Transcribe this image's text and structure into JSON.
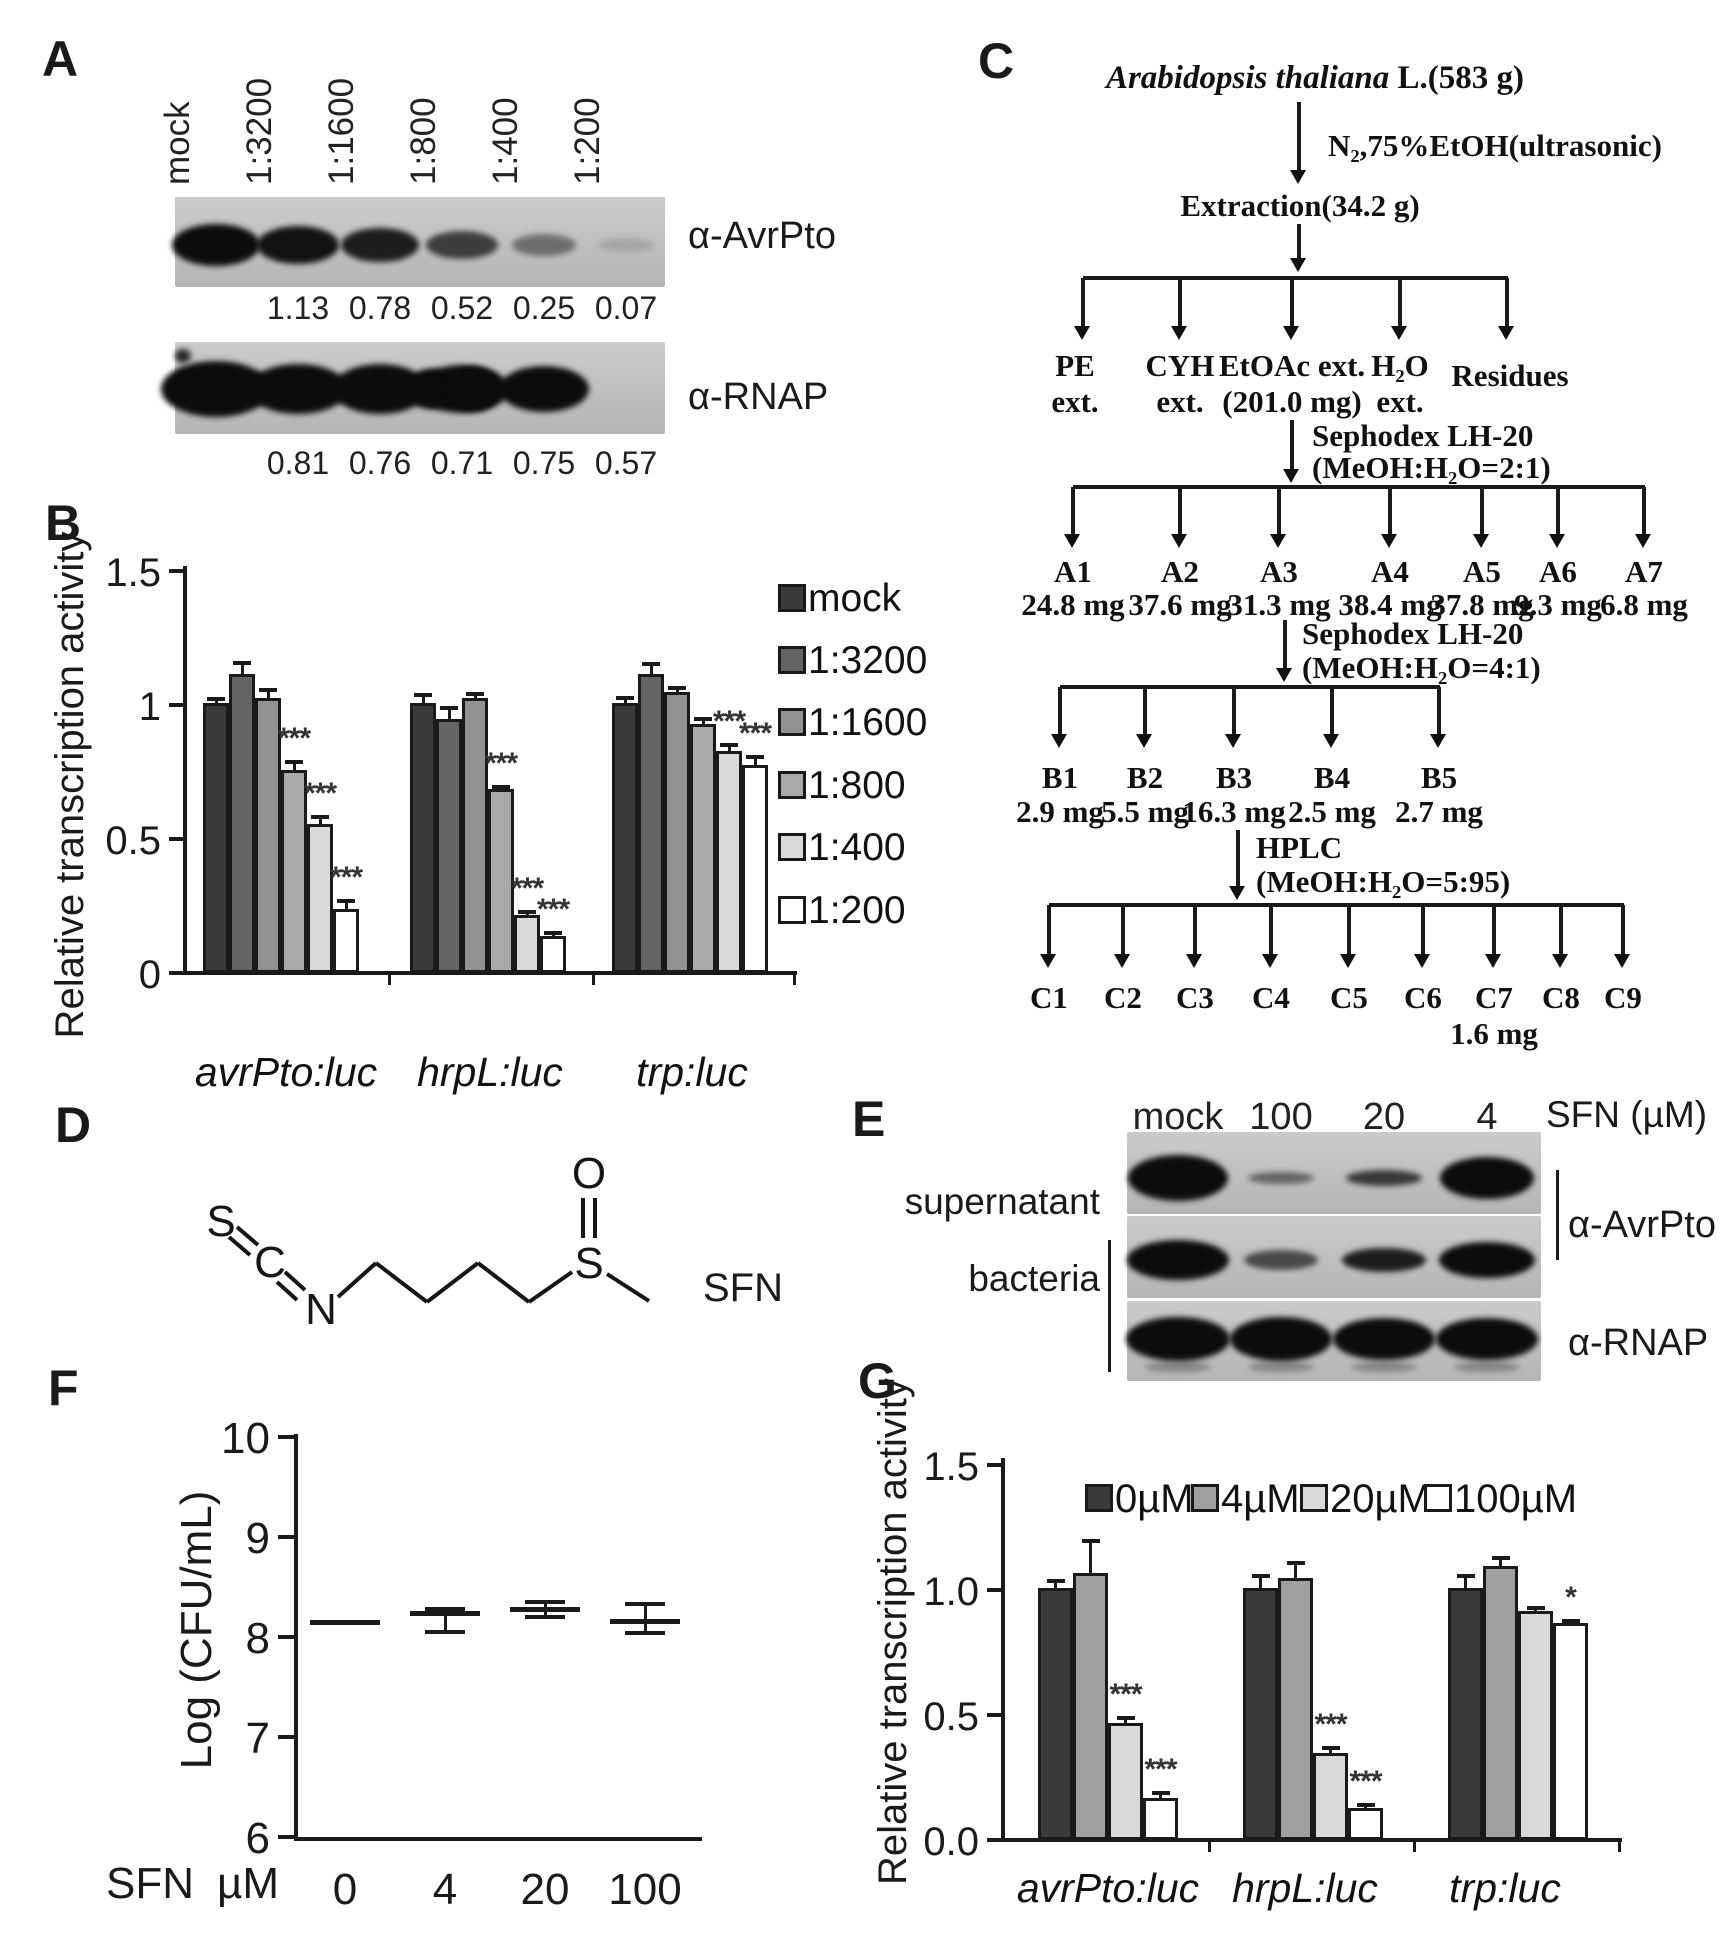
{
  "panel_a": {
    "label": "A",
    "lane_labels": [
      "mock",
      "1:3200",
      "1:1600",
      "1:800",
      "1:400",
      "1:200"
    ],
    "blot1_antibody": "α-AvrPto",
    "blot1_quantification": [
      "1.13",
      "0.78",
      "0.52",
      "0.25",
      "0.07"
    ],
    "blot2_antibody": "α-RNAP",
    "blot2_quantification": [
      "0.81",
      "0.76",
      "0.71",
      "0.75",
      "0.57"
    ]
  },
  "panel_b": {
    "label": "B",
    "ylabel": "Relative transcription activity"
  },
  "panel_c": {
    "label": "C",
    "root_italic": "Arabidopsis thaliana",
    "root_rest": " L.(583 g)",
    "step1_reagent": "N₂,75%EtOH(ultrasonic)",
    "extraction": "Extraction(34.2 g)",
    "fractions": [
      {
        "line1": "PE",
        "line2": "ext."
      },
      {
        "line1": "CYH",
        "line2": "ext."
      },
      {
        "line1": "EtOAc ext.",
        "line2": "(201.0 mg)"
      },
      {
        "line1": "H₂O",
        "line2": "ext."
      },
      {
        "line1": "Residues",
        "line2": ""
      }
    ],
    "step2_line1": "Sephodex LH-20",
    "step2_line2": "(MeOH:H₂O=2:1)",
    "a_fractions": [
      {
        "name": "A1",
        "mass": "24.8 mg"
      },
      {
        "name": "A2",
        "mass": "37.6 mg"
      },
      {
        "name": "A3",
        "mass": "31.3 mg"
      },
      {
        "name": "A4",
        "mass": "38.4 mg"
      },
      {
        "name": "A5",
        "mass": "37.8 mg"
      },
      {
        "name": "A6",
        "mass": "9.3 mg"
      },
      {
        "name": "A7",
        "mass": "6.8 mg"
      }
    ],
    "step3_line1": "Sephodex LH-20",
    "step3_line2": "(MeOH:H₂O=4:1)",
    "b_fractions": [
      {
        "name": "B1",
        "mass": "2.9 mg"
      },
      {
        "name": "B2",
        "mass": "5.5 mg"
      },
      {
        "name": "B3",
        "mass": "16.3 mg"
      },
      {
        "name": "B4",
        "mass": "2.5 mg"
      },
      {
        "name": "B5",
        "mass": "2.7 mg"
      }
    ],
    "step4_line1": "HPLC",
    "step4_line2": "(MeOH:H₂O=5:95)",
    "c_fractions": [
      {
        "name": "C1",
        "mass": ""
      },
      {
        "name": "C2",
        "mass": ""
      },
      {
        "name": "C3",
        "mass": ""
      },
      {
        "name": "C4",
        "mass": ""
      },
      {
        "name": "C5",
        "mass": ""
      },
      {
        "name": "C6",
        "mass": ""
      },
      {
        "name": "C7",
        "mass": "1.6 mg"
      },
      {
        "name": "C8",
        "mass": ""
      },
      {
        "name": "C9",
        "mass": ""
      }
    ]
  },
  "panel_d": {
    "label": "D",
    "compound_label": "SFN",
    "atoms": {
      "s1": "S",
      "c": "C",
      "n": "N",
      "o": "O",
      "s2": "S"
    }
  },
  "panel_e": {
    "label": "E",
    "lane_labels": [
      "mock",
      "100",
      "20",
      "4"
    ],
    "dose_label": "SFN (µM)",
    "row_labels": [
      "supernatant",
      "bacteria"
    ],
    "blot_labels": [
      "α-AvrPto",
      "α-RNAP"
    ]
  },
  "panel_f": {
    "label": "F",
    "ylabel": "Log (CFU/mL)",
    "xlabel_prefix": "SFN",
    "xlabel_unit": "µM"
  },
  "panel_g": {
    "label": "G",
    "ylabel": "Relative transcription activity"
  },
  "chart_data": [
    {
      "id": "panel_b",
      "type": "bar",
      "ylabel": "Relative transcription activity",
      "ylim": [
        0,
        1.5
      ],
      "ytick_labels": [
        "1.5",
        "1",
        "0.5",
        "0"
      ],
      "ytick_values": [
        1.5,
        1.0,
        0.5,
        0
      ],
      "grid": false,
      "legend_position": "right",
      "categories": [
        "avrPto:luc",
        "hrpL:luc",
        "trp:luc"
      ],
      "series": [
        {
          "name": "mock",
          "color": "#3b3b3d",
          "values": [
            1.0,
            1.0,
            1.0
          ],
          "errors": [
            0.015,
            0.03,
            0.02
          ],
          "sig": [
            "",
            "",
            ""
          ]
        },
        {
          "name": "1:3200",
          "color": "#646467",
          "values": [
            1.11,
            0.94,
            1.11
          ],
          "errors": [
            0.04,
            0.04,
            0.035
          ],
          "sig": [
            "",
            "",
            ""
          ]
        },
        {
          "name": "1:1600",
          "color": "#929295",
          "values": [
            1.02,
            1.02,
            1.04
          ],
          "errors": [
            0.03,
            0.012,
            0.015
          ],
          "sig": [
            "",
            "",
            ""
          ]
        },
        {
          "name": "1:800",
          "color": "#a9a9ac",
          "values": [
            0.75,
            0.68,
            0.92
          ],
          "errors": [
            0.03,
            0.008,
            0.02
          ],
          "sig": [
            "***",
            "***",
            ""
          ]
        },
        {
          "name": "1:400",
          "color": "#d9d9db",
          "values": [
            0.55,
            0.21,
            0.82
          ],
          "errors": [
            0.025,
            0.01,
            0.025
          ],
          "sig": [
            "***",
            "***",
            "***"
          ]
        },
        {
          "name": "1:200",
          "color": "#ffffff",
          "values": [
            0.23,
            0.13,
            0.77
          ],
          "errors": [
            0.03,
            0.012,
            0.03
          ],
          "sig": [
            "***",
            "***",
            "***"
          ]
        }
      ]
    },
    {
      "id": "panel_f",
      "type": "scatter",
      "ylabel": "Log (CFU/mL)",
      "ylim": [
        6,
        10
      ],
      "ytick_labels": [
        "10",
        "9",
        "8",
        "7",
        "6"
      ],
      "ytick_values": [
        10,
        9,
        8,
        7,
        6
      ],
      "grid": false,
      "xlabel": "SFN µM",
      "x_categories": [
        "0",
        "4",
        "20",
        "100"
      ],
      "points": [
        {
          "x": "0",
          "mean": 8.15,
          "err_up": 0,
          "err_down": 0
        },
        {
          "x": "4",
          "mean": 8.24,
          "err_up": 0.04,
          "err_down": 0.19
        },
        {
          "x": "20",
          "mean": 8.28,
          "err_up": 0.07,
          "err_down": 0.08
        },
        {
          "x": "100",
          "mean": 8.16,
          "err_up": 0.17,
          "err_down": 0.12
        }
      ]
    },
    {
      "id": "panel_g",
      "type": "bar",
      "ylabel": "Relative transcription activity",
      "ylim": [
        0,
        1.5
      ],
      "ytick_labels": [
        "1.5",
        "1.0",
        "0.5",
        "0.0"
      ],
      "ytick_values": [
        1.5,
        1.0,
        0.5,
        0
      ],
      "grid": false,
      "legend_position": "top",
      "categories": [
        "avrPto:luc",
        "hrpL:luc",
        "trp:luc"
      ],
      "series": [
        {
          "name": "0µM",
          "color": "#3b3b3d",
          "values": [
            1.0,
            1.0,
            1.0
          ],
          "errors": [
            0.03,
            0.05,
            0.05
          ],
          "sig": [
            "",
            "",
            ""
          ]
        },
        {
          "name": "4µM",
          "color": "#a0a0a3",
          "values": [
            1.06,
            1.04,
            1.09
          ],
          "errors": [
            0.13,
            0.06,
            0.03
          ],
          "sig": [
            "",
            "",
            ""
          ]
        },
        {
          "name": "20µM",
          "color": "#d9d9db",
          "values": [
            0.46,
            0.34,
            0.91
          ],
          "errors": [
            0.02,
            0.02,
            0.012
          ],
          "sig": [
            "***",
            "***",
            ""
          ]
        },
        {
          "name": "100µM",
          "color": "#ffffff",
          "values": [
            0.16,
            0.12,
            0.86
          ],
          "errors": [
            0.02,
            0.012,
            0.01
          ],
          "sig": [
            "***",
            "***",
            "*"
          ]
        }
      ]
    }
  ]
}
